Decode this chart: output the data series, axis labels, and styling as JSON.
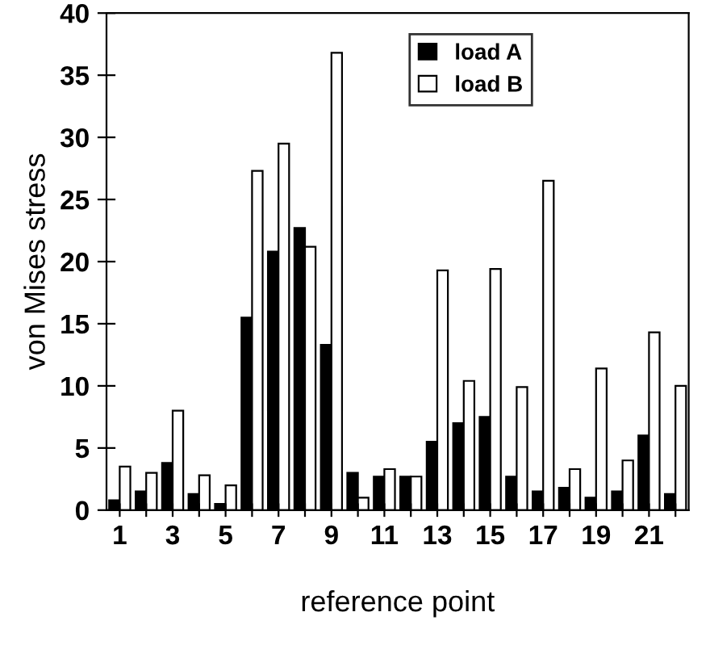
{
  "chart_data": {
    "type": "bar",
    "xlabel": "reference point",
    "ylabel": "von Mises stress",
    "categories": [
      "1",
      null,
      "3",
      null,
      "5",
      null,
      "7",
      null,
      "9",
      null,
      "11",
      null,
      "13",
      null,
      "15",
      null,
      "17",
      null,
      "19",
      null,
      "21",
      null
    ],
    "series": [
      {
        "name": "load A",
        "color": "#000000",
        "values": [
          0.8,
          1.5,
          3.8,
          1.3,
          0.5,
          15.5,
          20.8,
          22.7,
          13.3,
          3.0,
          2.7,
          2.7,
          5.5,
          7.0,
          7.5,
          2.7,
          1.5,
          1.8,
          1.0,
          1.5,
          6.0,
          1.3
        ]
      },
      {
        "name": "load B",
        "color": "#ffffff",
        "values": [
          3.5,
          3.0,
          8.0,
          2.8,
          2.0,
          27.3,
          29.5,
          21.2,
          36.8,
          1.0,
          3.3,
          2.7,
          19.3,
          10.4,
          19.4,
          9.9,
          26.5,
          3.3,
          11.4,
          4.0,
          14.3,
          10.0
        ]
      }
    ],
    "ylim": [
      0,
      40
    ],
    "yticks": [
      0,
      5,
      10,
      15,
      20,
      25,
      30,
      35,
      40
    ],
    "grid": false,
    "legend": "top right"
  }
}
